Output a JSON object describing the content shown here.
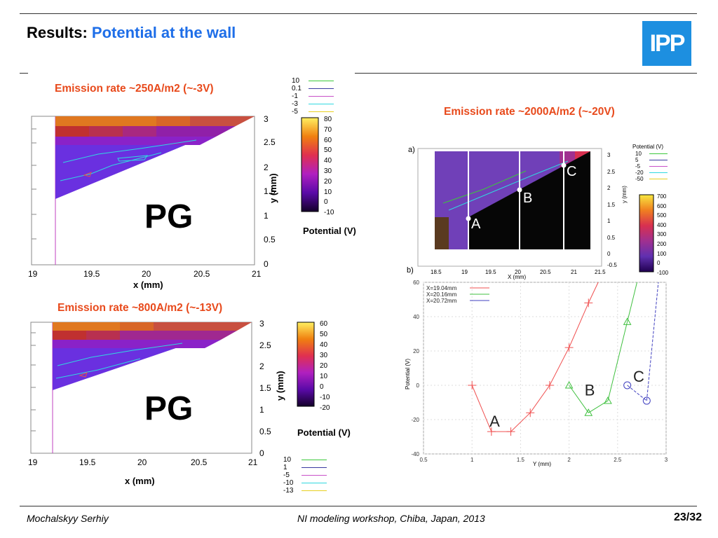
{
  "header": {
    "title_prefix": "Results:",
    "title_accent": "Potential at the wall",
    "logo": "IPP",
    "accent_color": "#1e6ee8",
    "logo_color": "#1d8fe0"
  },
  "labels": {
    "em1": "Emission rate ~250A/m2 (~-3V)",
    "em2": "Emission rate ~800A/m2 (~-13V)",
    "em3": "Emission rate ~2000A/m2 (~-20V)",
    "pg": "PG",
    "x_label": "x (mm)",
    "y_label": "y (mm)",
    "potential_label": "Potential (V)",
    "label_color": "#e84a1c"
  },
  "footer": {
    "author": "Mochalskyy Serhiy",
    "workshop": "NI modeling workshop,  Chiba, Japan, 2013",
    "page": "23/32"
  },
  "chart_data": [
    {
      "id": "map1",
      "type": "heatmap",
      "title": "Emission rate ~250A/m2 (~-3V)",
      "xlabel": "x (mm)",
      "ylabel": "y (mm)",
      "x_ticks": [
        "19",
        "19.5",
        "20",
        "20.5",
        "21"
      ],
      "y_ticks": [
        "3",
        "2.5",
        "2",
        "1.5",
        "1",
        "0.5",
        "0"
      ],
      "xlim": [
        19,
        21
      ],
      "ylim": [
        0,
        3
      ],
      "region_label": "PG",
      "colorbar_label": "Potential (V)",
      "colorbar_ticks": [
        "80",
        "70",
        "60",
        "50",
        "40",
        "30",
        "20",
        "10",
        "0",
        "-10"
      ],
      "colorbar_range": [
        -10,
        80
      ],
      "contour_legend": [
        {
          "label": "10",
          "color": "#3cc83c"
        },
        {
          "label": "0.1",
          "color": "#3a3aa0"
        },
        {
          "label": "-1",
          "color": "#c850c8"
        },
        {
          "label": "-3",
          "color": "#30d8e0"
        },
        {
          "label": "-5",
          "color": "#e8d020"
        }
      ]
    },
    {
      "id": "map2",
      "type": "heatmap",
      "title": "Emission rate ~800A/m2 (~-13V)",
      "xlabel": "x (mm)",
      "ylabel": "y (mm)",
      "x_ticks": [
        "19",
        "19.5",
        "20",
        "20.5",
        "21"
      ],
      "y_ticks": [
        "3",
        "2.5",
        "2",
        "1.5",
        "1",
        "0.5",
        "0"
      ],
      "xlim": [
        19,
        21
      ],
      "ylim": [
        0,
        3
      ],
      "region_label": "PG",
      "colorbar_label": "Potential (V)",
      "colorbar_ticks": [
        "60",
        "50",
        "40",
        "30",
        "20",
        "10",
        "0",
        "-10",
        "-20"
      ],
      "colorbar_range": [
        -20,
        60
      ],
      "contour_legend": [
        {
          "label": "10",
          "color": "#3cc83c"
        },
        {
          "label": "1",
          "color": "#3a3aa0"
        },
        {
          "label": "-5",
          "color": "#c850c8"
        },
        {
          "label": "-10",
          "color": "#30d8e0"
        },
        {
          "label": "-13",
          "color": "#e8d020"
        }
      ]
    },
    {
      "id": "map3",
      "type": "heatmap",
      "panel_label": "a)",
      "title": "Emission rate ~2000A/m2 (~-20V)",
      "xlabel": "X (mm)",
      "ylabel": "y (mm)",
      "x_ticks": [
        "18.5",
        "19",
        "19.5",
        "20",
        "20.5",
        "21",
        "21.5"
      ],
      "y_ticks": [
        "3",
        "2.5",
        "2",
        "1.5",
        "1",
        "0.5",
        "0",
        "-0.5"
      ],
      "xlim": [
        18.5,
        21.5
      ],
      "ylim": [
        -0.5,
        3
      ],
      "cut_lines": [
        {
          "label": "A",
          "x": 19.04
        },
        {
          "label": "B",
          "x": 20.16
        },
        {
          "label": "C",
          "x": 20.72
        }
      ],
      "legend_title": "Potential (V)",
      "colorbar_ticks": [
        "700",
        "600",
        "500",
        "400",
        "300",
        "200",
        "100",
        "0",
        "-100"
      ],
      "colorbar_range": [
        -100,
        700
      ],
      "contour_legend": [
        {
          "label": "10",
          "color": "#3cc83c"
        },
        {
          "label": "5",
          "color": "#3a3aa0"
        },
        {
          "label": "-5",
          "color": "#c850c8"
        },
        {
          "label": "-20",
          "color": "#30d8e0"
        },
        {
          "label": "-50",
          "color": "#e8d020"
        }
      ]
    },
    {
      "id": "line1",
      "type": "line",
      "panel_label": "b)",
      "xlabel": "Y (mm)",
      "ylabel": "Potential (V)",
      "xlim": [
        0.5,
        3
      ],
      "ylim": [
        -40,
        60
      ],
      "x_ticks": [
        "0.5",
        "1",
        "1.5",
        "2",
        "2.5",
        "3"
      ],
      "y_ticks": [
        "60",
        "40",
        "20",
        "0",
        "-20",
        "-40"
      ],
      "series": [
        {
          "name": "X=19.04mm",
          "curve_label": "A",
          "color": "#f05050",
          "marker": "plus",
          "x": [
            1.0,
            1.2,
            1.4,
            1.6,
            1.8,
            2.0,
            2.2
          ],
          "y": [
            0,
            -27,
            -27,
            -16,
            0,
            22,
            48
          ]
        },
        {
          "name": "X=20.16mm",
          "curve_label": "B",
          "color": "#40c040",
          "marker": "triangle",
          "x": [
            2.0,
            2.2,
            2.4,
            2.6
          ],
          "y": [
            0,
            -16,
            -9,
            37
          ]
        },
        {
          "name": "X=20.72mm",
          "curve_label": "C",
          "color": "#4040c0",
          "marker": "circle",
          "x": [
            2.6,
            2.8
          ],
          "y": [
            0,
            -9
          ]
        }
      ]
    }
  ]
}
